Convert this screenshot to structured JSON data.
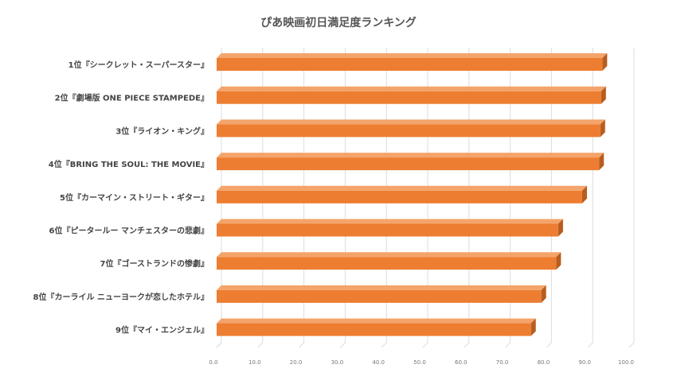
{
  "chart_data": {
    "type": "bar",
    "orientation": "horizontal",
    "title": "ぴあ映画初日満足度ランキング",
    "xlabel": "",
    "ylabel": "",
    "categories": [
      "1位『シークレット・スーパースター』",
      "2位『劇場版 ONE PIECE STAMPEDE』",
      "3位『ライオン・キング』",
      "4位『BRING THE SOUL: THE MOVIE』",
      "5位『カーマイン・ストリート・ギター』",
      "6位『ピータールー マンチェスターの悲劇』",
      "7位『ゴーストランドの惨劇』",
      "8位『カーライル ニューヨークが恋したホテル』",
      "9位『マイ・エンジェル』"
    ],
    "values": [
      93.5,
      93.2,
      93.0,
      92.7,
      88.6,
      82.8,
      82.3,
      78.7,
      76.2
    ],
    "xlim": [
      0,
      100
    ],
    "xticks": [
      "0.0",
      "10.0",
      "20.0",
      "30.0",
      "40.0",
      "50.0",
      "60.0",
      "70.0",
      "80.0",
      "90.0",
      "100.0"
    ],
    "grid": true,
    "legend": "none",
    "bar_color": "#ed7d31",
    "bar_side_color": "#b85d1f",
    "bar_top_color": "#f4a46a"
  }
}
